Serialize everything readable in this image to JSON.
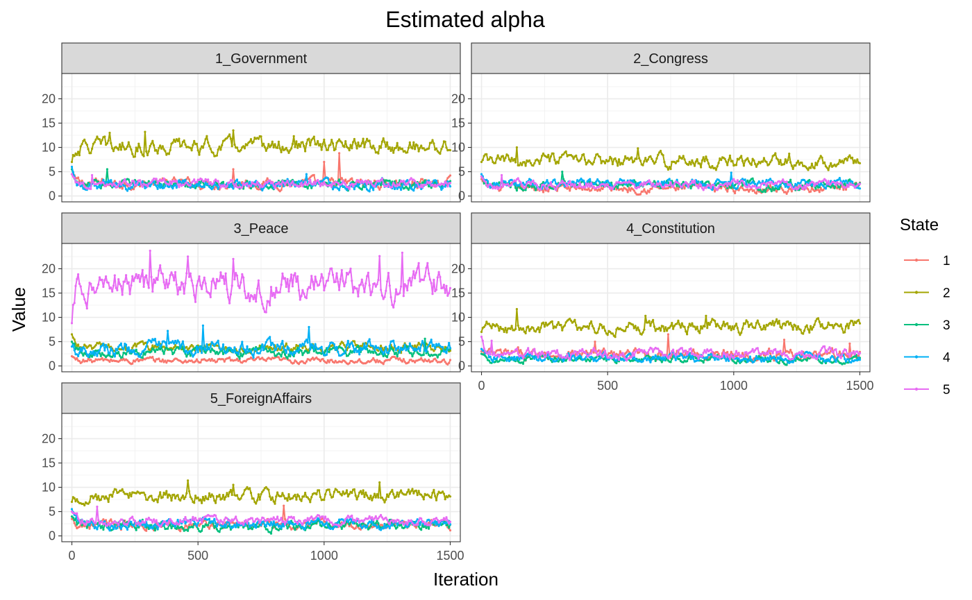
{
  "chart_data": {
    "type": "line",
    "title": "Estimated alpha",
    "xlabel": "Iteration",
    "ylabel": "Value",
    "xlim": [
      -40,
      1540
    ],
    "ylim": [
      -1.2,
      25.2
    ],
    "xticks": [
      0,
      500,
      1000,
      1500
    ],
    "yticks": [
      0,
      5,
      10,
      15,
      20
    ],
    "grid": true,
    "point_markers": true,
    "legend": {
      "title": "State",
      "position": "right",
      "entries": [
        {
          "label": "1",
          "color": "#F8766D"
        },
        {
          "label": "2",
          "color": "#A3A500"
        },
        {
          "label": "3",
          "color": "#00BF7D"
        },
        {
          "label": "4",
          "color": "#00B0F6"
        },
        {
          "label": "5",
          "color": "#E76BF3"
        }
      ]
    },
    "series_note_x": "each series sampled every 5 iterations from 0 to 1500",
    "facets": [
      {
        "strip": "1_Government",
        "series": [
          {
            "state": "1",
            "start": 4.5,
            "mean": 2.6,
            "spread": 0.7,
            "spikes": [
              [
                640,
                5.5
              ],
              [
                1000,
                7.0
              ],
              [
                1060,
                8.8
              ]
            ]
          },
          {
            "state": "2",
            "start": 7.0,
            "mean": 10.2,
            "spread": 1.1,
            "spikes": [
              [
                150,
                13.0
              ],
              [
                290,
                13.2
              ],
              [
                640,
                13.5
              ],
              [
                880,
                12.3
              ]
            ]
          },
          {
            "state": "3",
            "start": 5.5,
            "mean": 2.4,
            "spread": 0.6,
            "spikes": [
              [
                140,
                5.5
              ]
            ]
          },
          {
            "state": "4",
            "start": 6.0,
            "mean": 2.3,
            "spread": 0.7,
            "spikes": [
              [
                930,
                4.5
              ]
            ]
          },
          {
            "state": "5",
            "start": 4.5,
            "mean": 2.5,
            "spread": 0.6,
            "spikes": [
              [
                80,
                4.3
              ]
            ]
          }
        ]
      },
      {
        "strip": "2_Congress",
        "series": [
          {
            "state": "1",
            "start": 3.5,
            "mean": 1.6,
            "spread": 0.6,
            "spikes": []
          },
          {
            "state": "2",
            "start": 7.0,
            "mean": 7.2,
            "spread": 0.9,
            "spikes": [
              [
                140,
                10.0
              ],
              [
                620,
                9.8
              ],
              [
                1220,
                8.7
              ]
            ]
          },
          {
            "state": "3",
            "start": 4.0,
            "mean": 2.2,
            "spread": 0.7,
            "spikes": [
              [
                320,
                5.0
              ]
            ]
          },
          {
            "state": "4",
            "start": 4.5,
            "mean": 2.6,
            "spread": 0.6,
            "spikes": [
              [
                990,
                4.8
              ]
            ]
          },
          {
            "state": "5",
            "start": 4.0,
            "mean": 2.3,
            "spread": 0.6,
            "spikes": [
              [
                80,
                4.3
              ]
            ]
          }
        ]
      },
      {
        "strip": "3_Peace",
        "series": [
          {
            "state": "1",
            "start": 2.0,
            "mean": 1.1,
            "spread": 0.4,
            "spikes": []
          },
          {
            "state": "2",
            "start": 6.5,
            "mean": 3.8,
            "spread": 0.6,
            "spikes": []
          },
          {
            "state": "3",
            "start": 5.0,
            "mean": 2.8,
            "spread": 0.7,
            "spikes": [
              [
                1400,
                5.6
              ]
            ]
          },
          {
            "state": "4",
            "start": 4.0,
            "mean": 3.6,
            "spread": 1.0,
            "spikes": [
              [
                520,
                8.3
              ],
              [
                940,
                8.0
              ],
              [
                380,
                7.2
              ]
            ]
          },
          {
            "state": "5",
            "start": 8.8,
            "mean": 16.5,
            "spread": 2.2,
            "spikes": [
              [
                310,
                23.7
              ],
              [
                1310,
                23.3
              ],
              [
                460,
                22.5
              ],
              [
                640,
                22.0
              ],
              [
                1220,
                22.6
              ]
            ]
          }
        ]
      },
      {
        "strip": "4_Constitution",
        "series": [
          {
            "state": "1",
            "start": 3.0,
            "mean": 2.4,
            "spread": 0.7,
            "spikes": [
              [
                450,
                5.0
              ],
              [
                740,
                6.5
              ],
              [
                1200,
                5.4
              ],
              [
                1460,
                4.6
              ]
            ]
          },
          {
            "state": "2",
            "start": 7.0,
            "mean": 8.0,
            "spread": 0.9,
            "spikes": [
              [
                140,
                11.7
              ],
              [
                890,
                10.3
              ],
              [
                650,
                10.3
              ]
            ]
          },
          {
            "state": "3",
            "start": 2.5,
            "mean": 1.4,
            "spread": 0.5,
            "spikes": []
          },
          {
            "state": "4",
            "start": 3.5,
            "mean": 1.6,
            "spread": 0.6,
            "spikes": []
          },
          {
            "state": "5",
            "start": 6.0,
            "mean": 2.5,
            "spread": 0.7,
            "spikes": [
              [
                40,
                5.2
              ]
            ]
          }
        ]
      },
      {
        "strip": "5_ForeignAffairs",
        "series": [
          {
            "state": "1",
            "start": 3.5,
            "mean": 2.3,
            "spread": 0.6,
            "spikes": [
              [
                840,
                6.2
              ]
            ]
          },
          {
            "state": "2",
            "start": 7.0,
            "mean": 8.2,
            "spread": 0.9,
            "spikes": [
              [
                460,
                11.4
              ],
              [
                1220,
                11.0
              ],
              [
                640,
                10.5
              ]
            ]
          },
          {
            "state": "3",
            "start": 4.0,
            "mean": 2.1,
            "spread": 0.7,
            "spikes": []
          },
          {
            "state": "4",
            "start": 5.5,
            "mean": 2.4,
            "spread": 0.7,
            "spikes": []
          },
          {
            "state": "5",
            "start": 5.0,
            "mean": 3.1,
            "spread": 0.6,
            "spikes": [
              [
                100,
                6.0
              ]
            ]
          }
        ]
      }
    ]
  }
}
